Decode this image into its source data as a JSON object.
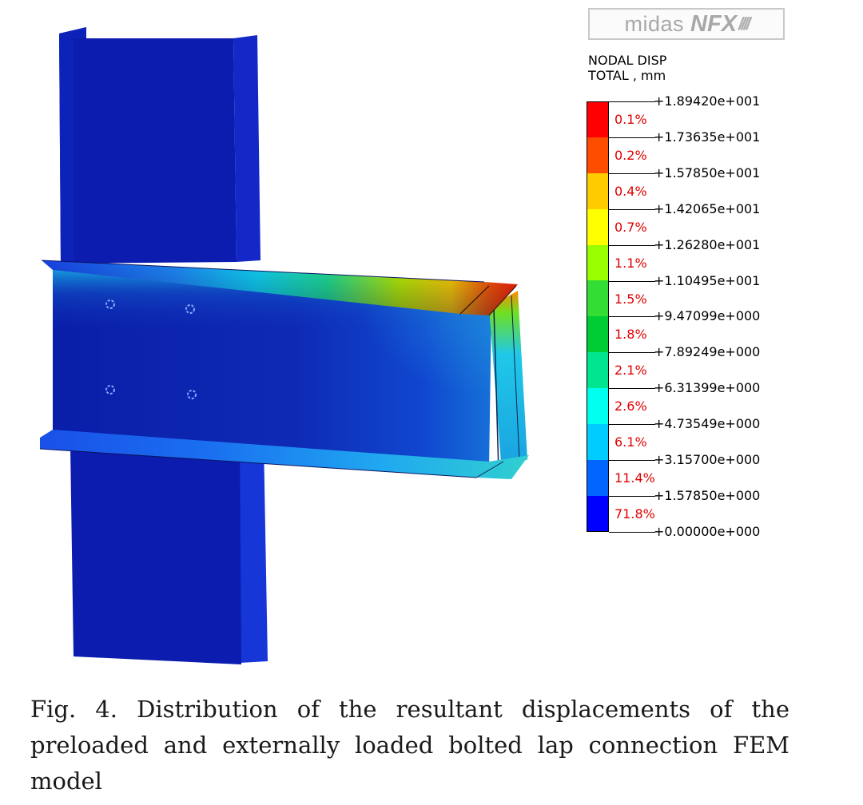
{
  "logo": {
    "brand": "midas",
    "product": "NFX",
    "slashes": "////"
  },
  "legend": {
    "title_line1": "NODAL DISP",
    "title_line2": "TOTAL , mm",
    "values": [
      "+1.89420e+001",
      "+1.73635e+001",
      "+1.57850e+001",
      "+1.42065e+001",
      "+1.26280e+001",
      "+1.10495e+001",
      "+9.47099e+000",
      "+7.89249e+000",
      "+6.31399e+000",
      "+4.73549e+000",
      "+3.15700e+000",
      "+1.57850e+000",
      "+0.00000e+000"
    ],
    "percentages": [
      "0.1%",
      "0.2%",
      "0.4%",
      "0.7%",
      "1.1%",
      "1.5%",
      "1.8%",
      "2.1%",
      "2.6%",
      "6.1%",
      "11.4%",
      "71.8%"
    ],
    "colors": [
      "#ff0000",
      "#ff4d00",
      "#ffcc00",
      "#ffff00",
      "#99ff00",
      "#33dd33",
      "#00cc33",
      "#00e690",
      "#00ffee",
      "#00ccff",
      "#0066ff",
      "#0000ff"
    ]
  },
  "caption": "Fig. 4. Distribution of the resultant displacements of the preloaded and externally loaded bolted lap connection FEM model"
}
